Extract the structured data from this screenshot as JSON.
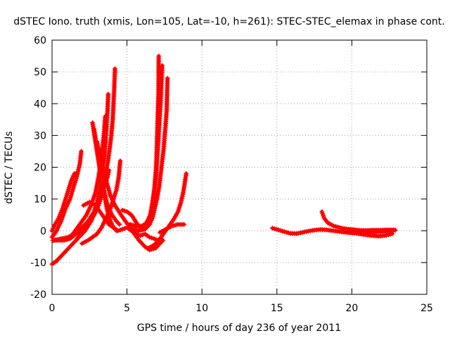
{
  "chart_data": {
    "type": "scatter",
    "title": "dSTEC Iono. truth (xmis, Lon=105, Lat=-10, h=261): STEC-STEC_elemax in phase cont.",
    "xlabel": "GPS time / hours of day 236 of year 2011",
    "ylabel": "dSTEC  / TECUs",
    "xlim": [
      0,
      25
    ],
    "ylim": [
      -20,
      60
    ],
    "x_ticks": [
      0,
      5,
      10,
      15,
      20,
      25
    ],
    "y_ticks": [
      -20,
      -10,
      0,
      10,
      20,
      30,
      40,
      50,
      60
    ],
    "grid": true,
    "marker": "+",
    "series_color": "#ff0000",
    "arcs": [
      [
        [
          0.0,
          -10.5
        ],
        [
          0.3,
          -9.5
        ],
        [
          0.6,
          -8
        ],
        [
          1.0,
          -6
        ],
        [
          1.4,
          -4
        ],
        [
          1.8,
          -2
        ],
        [
          2.2,
          0
        ],
        [
          2.6,
          3
        ],
        [
          2.9,
          6
        ],
        [
          3.1,
          9
        ],
        [
          3.3,
          13
        ],
        [
          3.5,
          17
        ],
        [
          3.7,
          21
        ],
        [
          3.85,
          26
        ],
        [
          3.95,
          30
        ],
        [
          4.05,
          35
        ],
        [
          4.1,
          40
        ],
        [
          4.15,
          45
        ],
        [
          4.2,
          51
        ]
      ],
      [
        [
          0.05,
          -3
        ],
        [
          0.3,
          -3
        ],
        [
          0.8,
          -3
        ],
        [
          1.2,
          -2.5
        ],
        [
          1.6,
          -1
        ],
        [
          2.0,
          1
        ],
        [
          2.4,
          3
        ],
        [
          2.8,
          6
        ],
        [
          3.0,
          9
        ],
        [
          3.2,
          13
        ],
        [
          3.35,
          18
        ],
        [
          3.5,
          24
        ],
        [
          3.6,
          30
        ],
        [
          3.7,
          38
        ],
        [
          3.75,
          43
        ]
      ],
      [
        [
          0.1,
          -3
        ],
        [
          0.6,
          -2.5
        ],
        [
          1.1,
          -2
        ],
        [
          1.4,
          -1
        ],
        [
          1.7,
          1
        ],
        [
          2.0,
          3
        ],
        [
          2.3,
          5
        ],
        [
          2.6,
          8
        ],
        [
          2.9,
          12
        ],
        [
          3.1,
          17
        ],
        [
          3.3,
          23
        ],
        [
          3.45,
          30
        ],
        [
          3.55,
          36
        ]
      ],
      [
        [
          0.0,
          0
        ],
        [
          0.2,
          2
        ],
        [
          0.45,
          4
        ],
        [
          0.7,
          7
        ],
        [
          0.9,
          10
        ],
        [
          1.1,
          13
        ],
        [
          1.3,
          16
        ],
        [
          1.5,
          18
        ],
        [
          1.6,
          18
        ]
      ],
      [
        [
          0.0,
          -2
        ],
        [
          0.3,
          0
        ],
        [
          0.6,
          3
        ],
        [
          0.9,
          7
        ],
        [
          1.2,
          10
        ],
        [
          1.45,
          14
        ],
        [
          1.65,
          17
        ],
        [
          1.85,
          21
        ],
        [
          1.95,
          25
        ]
      ],
      [
        [
          1.6,
          -3
        ],
        [
          1.9,
          -1
        ],
        [
          2.2,
          1
        ],
        [
          2.5,
          3
        ],
        [
          2.8,
          5
        ],
        [
          3.1,
          8
        ],
        [
          3.3,
          11
        ],
        [
          3.5,
          14
        ],
        [
          3.7,
          17
        ],
        [
          3.8,
          19
        ]
      ],
      [
        [
          2.7,
          34
        ],
        [
          2.9,
          28
        ],
        [
          3.1,
          22
        ],
        [
          3.3,
          16
        ],
        [
          3.5,
          11
        ],
        [
          3.7,
          6
        ],
        [
          3.9,
          3
        ],
        [
          4.1,
          1
        ],
        [
          4.3,
          0
        ]
      ],
      [
        [
          2.8,
          32
        ],
        [
          3.0,
          26
        ],
        [
          3.2,
          20
        ],
        [
          3.4,
          14
        ],
        [
          3.7,
          8
        ],
        [
          4.0,
          5
        ],
        [
          4.3,
          3
        ],
        [
          4.5,
          2
        ]
      ],
      [
        [
          3.0,
          28
        ],
        [
          3.3,
          21
        ],
        [
          3.6,
          16
        ],
        [
          3.9,
          11
        ],
        [
          4.2,
          8
        ],
        [
          4.6,
          5
        ],
        [
          4.9,
          3
        ],
        [
          5.2,
          1
        ],
        [
          5.5,
          -1
        ],
        [
          5.8,
          -3
        ],
        [
          6.2,
          -5
        ],
        [
          6.5,
          -6
        ],
        [
          6.9,
          -5.5
        ],
        [
          7.2,
          -4
        ],
        [
          7.4,
          -3
        ]
      ],
      [
        [
          2.0,
          -4
        ],
        [
          2.4,
          -3
        ],
        [
          2.7,
          -2
        ],
        [
          3.0,
          -1
        ],
        [
          3.3,
          1
        ],
        [
          3.6,
          4
        ],
        [
          3.9,
          7
        ],
        [
          4.1,
          10
        ],
        [
          4.3,
          13
        ],
        [
          4.45,
          17
        ],
        [
          4.55,
          22
        ]
      ],
      [
        [
          2.1,
          8
        ],
        [
          2.5,
          9
        ],
        [
          2.9,
          8
        ],
        [
          3.2,
          6
        ],
        [
          3.5,
          4
        ],
        [
          3.8,
          2
        ],
        [
          4.1,
          1
        ],
        [
          4.4,
          0
        ],
        [
          4.7,
          0.5
        ],
        [
          5.0,
          1
        ],
        [
          5.3,
          0
        ],
        [
          5.6,
          -1
        ],
        [
          5.9,
          -1.5
        ],
        [
          6.2,
          -1
        ],
        [
          6.5,
          -2
        ],
        [
          6.8,
          -2.5
        ],
        [
          7.1,
          -3
        ]
      ],
      [
        [
          4.7,
          6.5
        ],
        [
          5.0,
          6
        ],
        [
          5.3,
          5
        ],
        [
          5.5,
          3.5
        ],
        [
          5.7,
          2
        ],
        [
          5.9,
          1
        ],
        [
          6.1,
          0.5
        ],
        [
          6.3,
          1
        ],
        [
          6.5,
          2
        ],
        [
          6.6,
          4
        ],
        [
          6.75,
          8
        ],
        [
          6.85,
          13
        ],
        [
          6.95,
          20
        ],
        [
          7.0,
          28
        ],
        [
          7.05,
          36
        ],
        [
          7.1,
          44
        ],
        [
          7.12,
          55
        ]
      ],
      [
        [
          5.2,
          2
        ],
        [
          5.6,
          1.5
        ],
        [
          6.0,
          1.5
        ],
        [
          6.3,
          2.5
        ],
        [
          6.55,
          5
        ],
        [
          6.7,
          9
        ],
        [
          6.85,
          14
        ],
        [
          6.95,
          19
        ],
        [
          7.05,
          25
        ],
        [
          7.15,
          33
        ],
        [
          7.25,
          41
        ],
        [
          7.3,
          47
        ],
        [
          7.35,
          52
        ]
      ],
      [
        [
          5.0,
          1
        ],
        [
          5.4,
          0.5
        ],
        [
          5.8,
          0
        ],
        [
          6.2,
          0.5
        ],
        [
          6.5,
          2
        ],
        [
          6.7,
          4
        ],
        [
          6.85,
          7
        ],
        [
          7.0,
          10
        ],
        [
          7.15,
          14
        ],
        [
          7.3,
          20
        ],
        [
          7.45,
          26
        ],
        [
          7.55,
          32
        ],
        [
          7.65,
          38
        ],
        [
          7.7,
          48
        ]
      ],
      [
        [
          6.4,
          -5.5
        ],
        [
          6.8,
          -4.5
        ],
        [
          7.2,
          -2.5
        ],
        [
          7.5,
          -0.5
        ],
        [
          7.8,
          1.5
        ],
        [
          8.1,
          3.5
        ],
        [
          8.4,
          6
        ],
        [
          8.6,
          9
        ],
        [
          8.75,
          12
        ],
        [
          8.85,
          15
        ],
        [
          8.95,
          18
        ]
      ],
      [
        [
          7.2,
          -0.5
        ],
        [
          7.6,
          0.5
        ],
        [
          8.0,
          1.5
        ],
        [
          8.4,
          2
        ],
        [
          8.8,
          2
        ]
      ],
      [
        [
          14.7,
          0.8
        ],
        [
          15.1,
          0.3
        ],
        [
          15.5,
          -0.3
        ],
        [
          15.9,
          -0.8
        ],
        [
          16.3,
          -0.9
        ],
        [
          16.7,
          -0.5
        ],
        [
          17.1,
          -0.1
        ],
        [
          17.5,
          0.2
        ],
        [
          17.9,
          0.4
        ],
        [
          18.3,
          0.3
        ],
        [
          18.8,
          0
        ],
        [
          19.3,
          -0.3
        ],
        [
          19.8,
          -0.6
        ],
        [
          20.3,
          -0.8
        ],
        [
          20.8,
          -1.2
        ],
        [
          21.3,
          -1.5
        ],
        [
          21.8,
          -1.7
        ],
        [
          22.3,
          -1.4
        ],
        [
          22.7,
          -0.9
        ]
      ],
      [
        [
          18.0,
          6
        ],
        [
          18.15,
          4
        ],
        [
          18.4,
          2.5
        ],
        [
          18.8,
          1.5
        ],
        [
          19.2,
          1
        ],
        [
          19.6,
          0.5
        ],
        [
          20.0,
          0
        ],
        [
          20.5,
          -0.2
        ],
        [
          21.0,
          -0.4
        ],
        [
          21.5,
          -0.3
        ],
        [
          22.0,
          -0.2
        ],
        [
          22.5,
          0
        ],
        [
          22.9,
          0.2
        ]
      ],
      [
        [
          19.4,
          0.6
        ],
        [
          19.9,
          0.5
        ],
        [
          20.4,
          0.2
        ],
        [
          20.9,
          0.1
        ],
        [
          21.4,
          0.2
        ],
        [
          21.9,
          0.2
        ],
        [
          22.4,
          0.3
        ],
        [
          22.8,
          0.3
        ]
      ]
    ]
  }
}
